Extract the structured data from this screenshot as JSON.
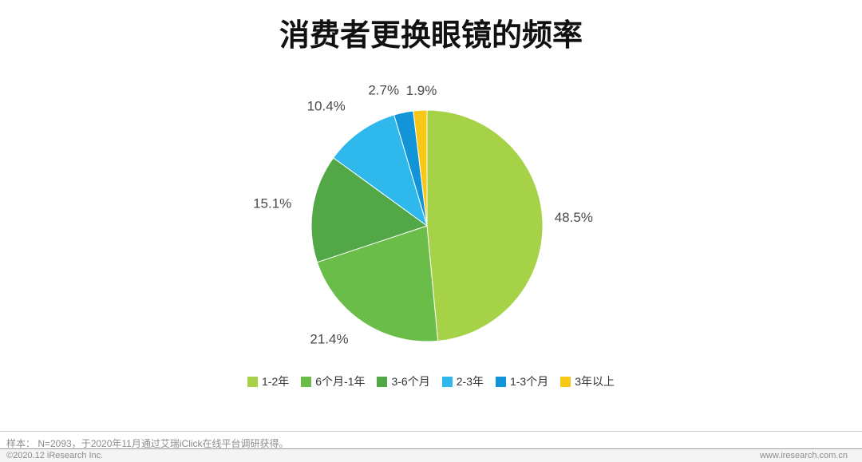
{
  "page": {
    "title": "消费者更换眼镜的频率",
    "footnote": "样本：  N=2093，于2020年11月通过艾瑞iClick在线平台调研获得。",
    "footer_left": "©2020.12 iResearch Inc.",
    "footer_right": "www.iresearch.com.cn"
  },
  "chart_data": {
    "type": "pie",
    "title": "消费者更换眼镜的频率",
    "labels": [
      "1-2年",
      "6个月-1年",
      "3-6个月",
      "2-3年",
      "1-3个月",
      "3年以上"
    ],
    "values": [
      48.5,
      21.4,
      15.1,
      10.4,
      2.7,
      1.9
    ],
    "value_labels": [
      "48.5%",
      "21.4%",
      "15.1%",
      "10.4%",
      "2.7%",
      "1.9%"
    ],
    "unit": "%",
    "colors": [
      "#a5d247",
      "#6bbd49",
      "#52a846",
      "#2eb8ec",
      "#1295d8",
      "#f9c716"
    ],
    "start_angle_deg": 0,
    "direction": "clockwise",
    "legend_position": "bottom",
    "grid": false
  }
}
